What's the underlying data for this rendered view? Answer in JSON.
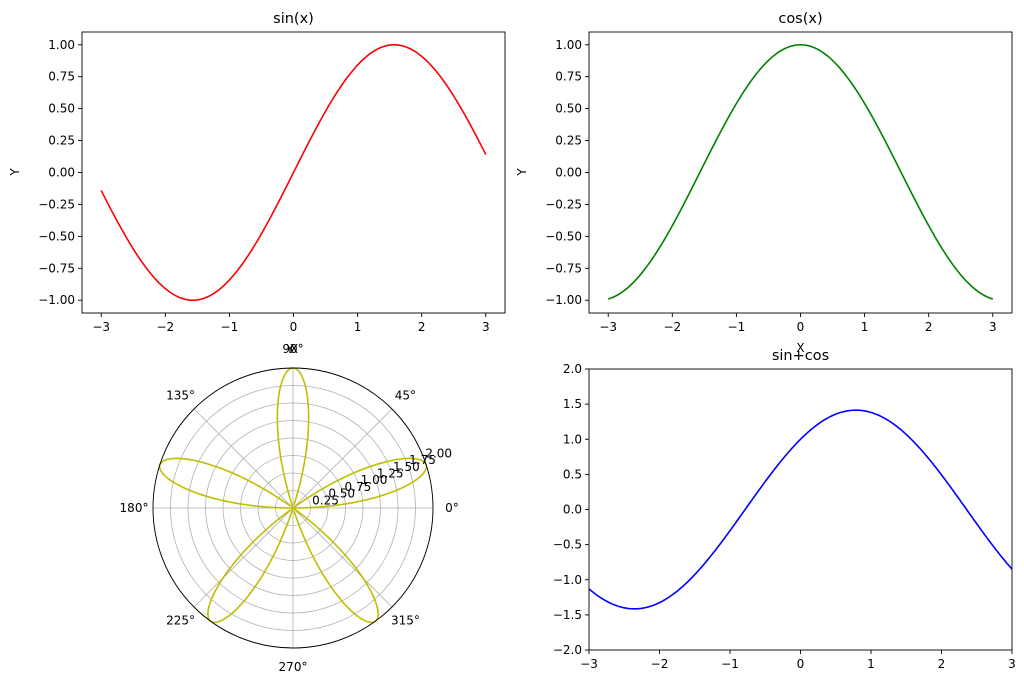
{
  "chart_data": [
    {
      "type": "line",
      "title": "sin(x)",
      "xlabel": "",
      "ylabel": "Y",
      "xlim": [
        -3.3,
        3.3
      ],
      "ylim": [
        -1.1,
        1.1
      ],
      "xticks": [
        -3,
        -2,
        -1,
        0,
        1,
        2,
        3
      ],
      "xtick_labels": [
        "−3",
        "−2",
        "−1",
        "0",
        "1",
        "2",
        "3"
      ],
      "yticks": [
        -1.0,
        -0.75,
        -0.5,
        -0.25,
        0.0,
        0.25,
        0.5,
        0.75,
        1.0
      ],
      "ytick_labels": [
        "−1.00",
        "−0.75",
        "−0.50",
        "−0.25",
        "0.00",
        "0.25",
        "0.50",
        "0.75",
        "1.00"
      ],
      "series": [
        {
          "function": "sin(x)",
          "x_range": [
            -3,
            3
          ],
          "color": "#ff0000",
          "points": [
            [
              -3,
              -0.14
            ],
            [
              -2,
              -0.91
            ],
            [
              -1.57,
              -1.0
            ],
            [
              -1,
              -0.84
            ],
            [
              0,
              0.0
            ],
            [
              1,
              0.84
            ],
            [
              1.57,
              1.0
            ],
            [
              2,
              0.91
            ],
            [
              3,
              0.14
            ]
          ]
        }
      ],
      "grid": false
    },
    {
      "type": "line",
      "title": "cos(x)",
      "xlabel": "X",
      "ylabel": "Y",
      "xlim": [
        -3.3,
        3.3
      ],
      "ylim": [
        -1.1,
        1.1
      ],
      "xticks": [
        -3,
        -2,
        -1,
        0,
        1,
        2,
        3
      ],
      "xtick_labels": [
        "−3",
        "−2",
        "−1",
        "0",
        "1",
        "2",
        "3"
      ],
      "yticks": [
        -1.0,
        -0.75,
        -0.5,
        -0.25,
        0.0,
        0.25,
        0.5,
        0.75,
        1.0
      ],
      "ytick_labels": [
        "−1.00",
        "−0.75",
        "−0.50",
        "−0.25",
        "0.00",
        "0.25",
        "0.50",
        "0.75",
        "1.00"
      ],
      "series": [
        {
          "function": "cos(x)",
          "x_range": [
            -3,
            3
          ],
          "color": "#008000",
          "points": [
            [
              -3,
              -0.99
            ],
            [
              -2,
              -0.42
            ],
            [
              -1,
              0.54
            ],
            [
              0,
              1.0
            ],
            [
              1,
              0.54
            ],
            [
              2,
              -0.42
            ],
            [
              3,
              -0.99
            ]
          ]
        }
      ],
      "grid": false
    },
    {
      "type": "polar",
      "title": "",
      "rlim": [
        0,
        2.0
      ],
      "rticks": [
        0.25,
        0.5,
        0.75,
        1.0,
        1.25,
        1.5,
        1.75,
        2.0
      ],
      "rtick_labels": [
        "0.25",
        "0.50",
        "0.75",
        "1.00",
        "1.25",
        "1.50",
        "1.75",
        "2.00"
      ],
      "angle_ticks_deg": [
        0,
        45,
        90,
        135,
        180,
        225,
        270,
        315
      ],
      "angle_tick_labels": [
        "0°",
        "45°",
        "90°",
        "135°",
        "180°",
        "225°",
        "270°",
        "315°"
      ],
      "overlapping_labels": [
        "X",
        "Y"
      ],
      "series": [
        {
          "function": "r = 2·sin(5θ)",
          "petals": 5,
          "r_max": 2.0,
          "color": "#bfbf00"
        }
      ],
      "grid": true
    },
    {
      "type": "line",
      "title": "sin+cos",
      "xlabel": "",
      "ylabel": "",
      "xlim": [
        -3,
        3
      ],
      "ylim": [
        -2.0,
        2.0
      ],
      "xticks": [
        -3,
        -2,
        -1,
        0,
        1,
        2,
        3
      ],
      "xtick_labels": [
        "−3",
        "−2",
        "−1",
        "0",
        "1",
        "2",
        "3"
      ],
      "yticks": [
        -2.0,
        -1.5,
        -1.0,
        -0.5,
        0.0,
        0.5,
        1.0,
        1.5,
        2.0
      ],
      "ytick_labels": [
        "−2.0",
        "−1.5",
        "−1.0",
        "−0.5",
        "0.0",
        "0.5",
        "1.0",
        "1.5",
        "2.0"
      ],
      "series": [
        {
          "function": "sin(x)+cos(x)",
          "x_range": [
            -3,
            3
          ],
          "color": "#0000ff",
          "points": [
            [
              -3,
              -1.13
            ],
            [
              -2.36,
              -1.41
            ],
            [
              -1,
              -0.3
            ],
            [
              0,
              1.0
            ],
            [
              0.79,
              1.41
            ],
            [
              1,
              1.38
            ],
            [
              2,
              0.49
            ],
            [
              3,
              -0.85
            ]
          ]
        }
      ],
      "grid": false
    }
  ]
}
